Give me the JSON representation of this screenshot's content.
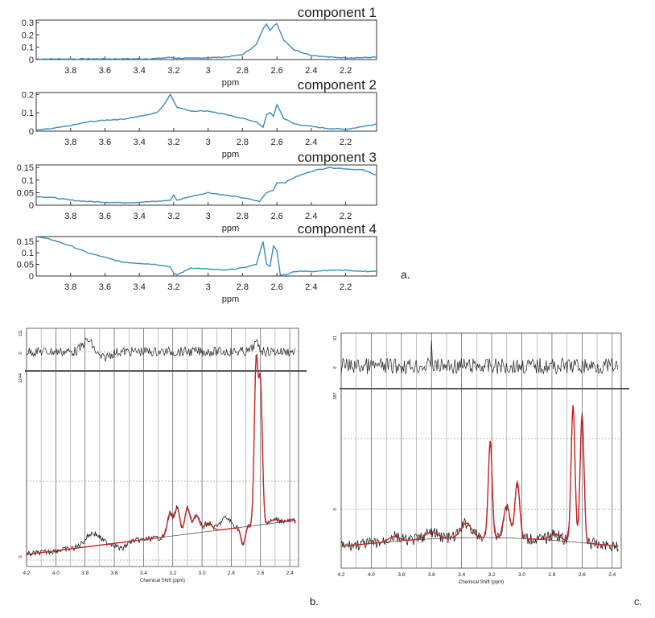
{
  "panel_a": {
    "letter": "a.",
    "xlabel": "ppm",
    "x_ticks": [
      "3.8",
      "3.6",
      "3.4",
      "3.2",
      "3",
      "2.8",
      "2.6",
      "2.4",
      "2.2"
    ],
    "line_color": "#3c8cbc",
    "components": [
      {
        "title": "component 1",
        "y_ticks": [
          "0.3",
          "0.2",
          "0.1",
          "0"
        ],
        "ylim": [
          0,
          0.32
        ],
        "x": [
          4.0,
          3.8,
          3.6,
          3.4,
          3.3,
          3.22,
          3.18,
          3.1,
          3.0,
          2.9,
          2.8,
          2.72,
          2.68,
          2.66,
          2.64,
          2.62,
          2.6,
          2.56,
          2.5,
          2.4,
          2.3,
          2.2,
          2.1,
          2.02
        ],
        "y": [
          0.005,
          0.005,
          0.006,
          0.006,
          0.008,
          0.018,
          0.012,
          0.01,
          0.015,
          0.02,
          0.04,
          0.12,
          0.25,
          0.29,
          0.24,
          0.27,
          0.29,
          0.16,
          0.08,
          0.035,
          0.02,
          0.015,
          0.015,
          0.02
        ]
      },
      {
        "title": "component 2",
        "y_ticks": [
          "0.2",
          "0.1",
          "0"
        ],
        "ylim": [
          0,
          0.21
        ],
        "x": [
          4.0,
          3.9,
          3.8,
          3.7,
          3.6,
          3.5,
          3.4,
          3.3,
          3.26,
          3.22,
          3.18,
          3.1,
          3.0,
          2.9,
          2.8,
          2.72,
          2.68,
          2.66,
          2.64,
          2.62,
          2.6,
          2.56,
          2.5,
          2.4,
          2.3,
          2.2,
          2.1,
          2.02
        ],
        "y": [
          0.005,
          0.015,
          0.03,
          0.05,
          0.06,
          0.065,
          0.08,
          0.1,
          0.14,
          0.2,
          0.13,
          0.11,
          0.11,
          0.09,
          0.07,
          0.05,
          0.02,
          0.09,
          0.1,
          0.08,
          0.145,
          0.07,
          0.04,
          0.025,
          0.015,
          0.01,
          0.025,
          0.04
        ]
      },
      {
        "title": "component 3",
        "y_ticks": [
          "0.15",
          "0.1",
          "0.05",
          "0"
        ],
        "ylim": [
          0,
          0.16
        ],
        "x": [
          4.0,
          3.9,
          3.8,
          3.7,
          3.6,
          3.5,
          3.4,
          3.3,
          3.22,
          3.2,
          3.18,
          3.1,
          3.0,
          2.9,
          2.8,
          2.7,
          2.66,
          2.62,
          2.6,
          2.55,
          2.5,
          2.4,
          2.3,
          2.2,
          2.1,
          2.02
        ],
        "y": [
          0.035,
          0.03,
          0.02,
          0.015,
          0.012,
          0.01,
          0.012,
          0.015,
          0.02,
          0.04,
          0.02,
          0.035,
          0.05,
          0.04,
          0.03,
          0.015,
          0.05,
          0.06,
          0.09,
          0.09,
          0.11,
          0.135,
          0.15,
          0.145,
          0.14,
          0.12
        ]
      },
      {
        "title": "component 4",
        "y_ticks": [
          "0.15",
          "0.1",
          "0.05",
          "0"
        ],
        "ylim": [
          0,
          0.17
        ],
        "x": [
          4.0,
          3.9,
          3.8,
          3.7,
          3.6,
          3.5,
          3.4,
          3.3,
          3.22,
          3.2,
          3.18,
          3.1,
          3.0,
          2.9,
          2.8,
          2.72,
          2.68,
          2.66,
          2.64,
          2.62,
          2.6,
          2.58,
          2.55,
          2.5,
          2.4,
          2.3,
          2.2,
          2.1,
          2.02
        ],
        "y": [
          0.17,
          0.155,
          0.13,
          0.1,
          0.08,
          0.06,
          0.055,
          0.05,
          0.04,
          0.01,
          0.005,
          0.035,
          0.03,
          0.025,
          0.035,
          0.05,
          0.15,
          0.05,
          0.04,
          0.13,
          0.11,
          0.005,
          0.005,
          0.02,
          0.02,
          0.025,
          0.025,
          0.02,
          0.02
        ]
      }
    ]
  },
  "panel_b": {
    "letter": "b.",
    "xlabel": "Chemical Shift (ppm)",
    "x_ticks": [
      "4.2",
      "4.0",
      "3.8",
      "3.6",
      "3.4",
      "3.2",
      "3.0",
      "2.8",
      "2.6",
      "2.4"
    ],
    "residual_top_label": "111",
    "residual_mid_label": "0",
    "main_top_label": "1244",
    "main_zero_label": "0",
    "fit_color": "#cc2020",
    "data_color": "#222222",
    "baseline_color": "#555555"
  },
  "panel_c": {
    "letter": "c.",
    "xlabel": "Chemical Shift (ppm)",
    "x_ticks": [
      "4.2",
      "4.0",
      "3.8",
      "3.6",
      "3.4",
      "3.2",
      "3.0",
      "2.8",
      "2.6",
      "2.4"
    ],
    "residual_top_label": "81",
    "residual_mid_label": "0",
    "main_top_label": "387",
    "main_zero_label": "0",
    "fit_color": "#cc2020",
    "data_color": "#222222",
    "baseline_color": "#555555"
  }
}
